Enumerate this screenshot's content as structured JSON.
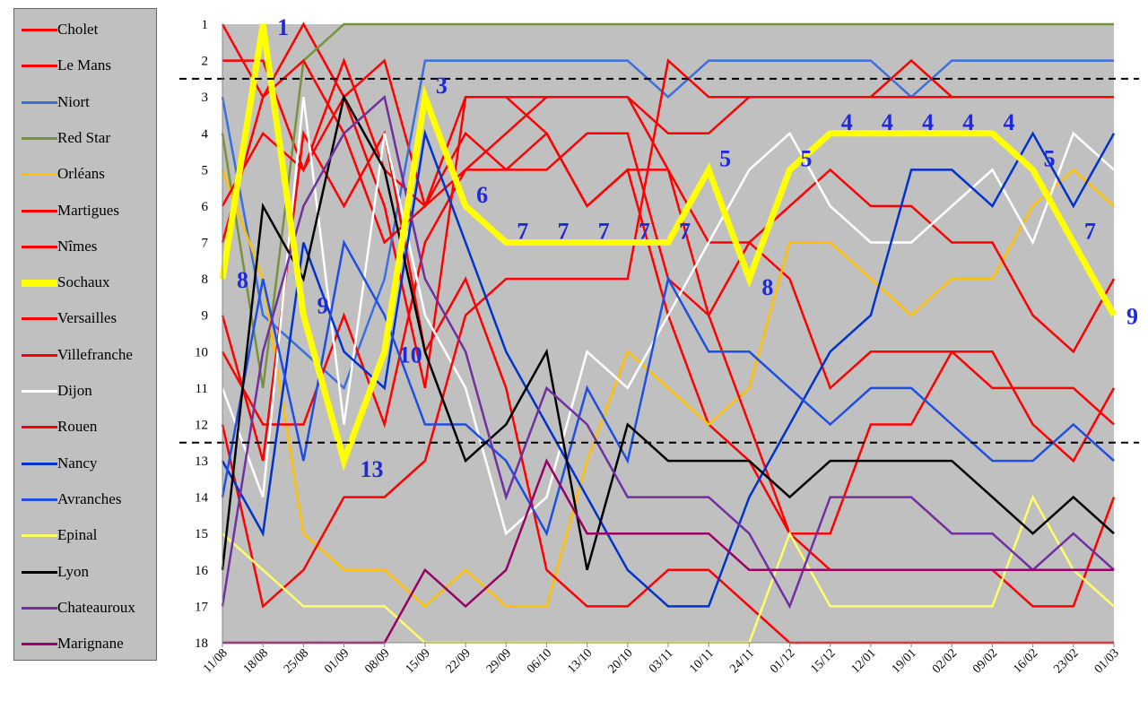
{
  "chart_data": {
    "type": "line",
    "title": "",
    "xlabel": "",
    "ylabel": "",
    "x": [
      "11/08",
      "18/08",
      "25/08",
      "01/09",
      "08/09",
      "15/09",
      "22/09",
      "29/09",
      "06/10",
      "13/10",
      "20/10",
      "03/11",
      "10/11",
      "24/11",
      "01/12",
      "15/12",
      "12/01",
      "19/01",
      "02/02",
      "09/02",
      "16/02",
      "23/02",
      "01/03"
    ],
    "y_ticks": [
      1,
      2,
      3,
      4,
      5,
      6,
      7,
      8,
      9,
      10,
      11,
      12,
      13,
      14,
      15,
      16,
      17,
      18
    ],
    "ylim": [
      18,
      1
    ],
    "y_inverted": true,
    "grid": false,
    "background": "#c0c0c0",
    "legend_position": "left",
    "reference_lines": [
      2.5,
      12.5
    ],
    "series": [
      {
        "name": "Cholet",
        "color": "#ff0000",
        "values": [
          1,
          3,
          1,
          3,
          6,
          11,
          3,
          3,
          4,
          6,
          5,
          9,
          12,
          13,
          15,
          16,
          16,
          16,
          16,
          16,
          17,
          17,
          14
        ]
      },
      {
        "name": "Le Mans",
        "color": "#ff0000",
        "values": [
          2,
          2,
          5,
          3,
          2,
          6,
          5,
          4,
          3,
          3,
          3,
          5,
          9,
          7,
          8,
          11,
          10,
          10,
          10,
          11,
          11,
          11,
          12
        ]
      },
      {
        "name": "Niort",
        "color": "#3a6fdc",
        "values": [
          3,
          9,
          10,
          11,
          8,
          2,
          2,
          2,
          2,
          2,
          2,
          3,
          2,
          2,
          2,
          2,
          2,
          3,
          2,
          2,
          2,
          2,
          2
        ]
      },
      {
        "name": "Red Star",
        "color": "#77933c",
        "values": [
          4,
          11,
          2,
          1,
          1,
          1,
          1,
          1,
          1,
          1,
          1,
          1,
          1,
          1,
          1,
          1,
          1,
          1,
          1,
          1,
          1,
          1,
          1
        ]
      },
      {
        "name": "Orléans",
        "color": "#ffc000",
        "values": [
          5,
          8,
          15,
          16,
          16,
          17,
          16,
          17,
          17,
          13,
          10,
          11,
          12,
          11,
          7,
          7,
          8,
          9,
          8,
          8,
          6,
          5,
          6
        ]
      },
      {
        "name": "Martigues",
        "color": "#ff0000",
        "values": [
          6,
          4,
          5,
          2,
          5,
          6,
          4,
          5,
          5,
          4,
          4,
          8,
          9,
          12,
          15,
          15,
          12,
          12,
          10,
          10,
          12,
          13,
          11
        ]
      },
      {
        "name": "Nîmes",
        "color": "#ff0000",
        "values": [
          7,
          3,
          2,
          4,
          7,
          6,
          3,
          3,
          3,
          3,
          3,
          4,
          4,
          3,
          3,
          3,
          3,
          2,
          3,
          3,
          3,
          3,
          3
        ]
      },
      {
        "name": "Sochaux",
        "color": "#ffff00",
        "values": [
          8,
          1,
          9,
          13,
          10,
          3,
          6,
          7,
          7,
          7,
          7,
          7,
          5,
          8,
          5,
          4,
          4,
          4,
          4,
          4,
          5,
          7,
          9
        ]
      },
      {
        "name": "Versailles",
        "color": "#ff0000",
        "values": [
          9,
          13,
          4,
          6,
          4,
          10,
          8,
          11,
          16,
          17,
          17,
          16,
          16,
          17,
          18,
          18,
          18,
          18,
          18,
          18,
          18,
          18,
          18
        ]
      },
      {
        "name": "Villefranche",
        "color": "#ff0000",
        "values": [
          10,
          12,
          12,
          9,
          12,
          7,
          5,
          5,
          4,
          6,
          5,
          5,
          7,
          7,
          6,
          5,
          6,
          6,
          7,
          7,
          9,
          10,
          8
        ]
      },
      {
        "name": "Dijon",
        "color": "#ffffff",
        "values": [
          11,
          14,
          3,
          12,
          4,
          9,
          11,
          15,
          14,
          10,
          11,
          9,
          7,
          5,
          4,
          6,
          7,
          7,
          6,
          5,
          7,
          4,
          5
        ]
      },
      {
        "name": "Rouen",
        "color": "#ff0000",
        "values": [
          12,
          17,
          16,
          14,
          14,
          13,
          9,
          8,
          8,
          8,
          8,
          2,
          3,
          3,
          3,
          3,
          3,
          3,
          3,
          3,
          3,
          3,
          3
        ]
      },
      {
        "name": "Nancy",
        "color": "#0033cc",
        "values": [
          13,
          15,
          7,
          10,
          11,
          4,
          7,
          10,
          12,
          14,
          16,
          17,
          17,
          14,
          12,
          10,
          9,
          5,
          5,
          6,
          4,
          6,
          4
        ]
      },
      {
        "name": "Avranches",
        "color": "#1f4fe0",
        "values": [
          14,
          8,
          13,
          7,
          9,
          12,
          12,
          13,
          15,
          11,
          13,
          8,
          10,
          10,
          11,
          12,
          11,
          11,
          12,
          13,
          13,
          12,
          13
        ]
      },
      {
        "name": "Epinal",
        "color": "#ffff66",
        "values": [
          15,
          16,
          17,
          17,
          17,
          18,
          18,
          18,
          18,
          18,
          18,
          18,
          18,
          18,
          15,
          17,
          17,
          17,
          17,
          17,
          14,
          16,
          17
        ]
      },
      {
        "name": "Lyon",
        "color": "#000000",
        "values": [
          16,
          6,
          8,
          3,
          5,
          10,
          13,
          12,
          10,
          16,
          12,
          13,
          13,
          13,
          14,
          13,
          13,
          13,
          13,
          14,
          15,
          14,
          15
        ]
      },
      {
        "name": "Chateauroux",
        "color": "#7030a0",
        "values": [
          17,
          10,
          6,
          4,
          3,
          8,
          10,
          14,
          11,
          12,
          14,
          14,
          14,
          15,
          17,
          14,
          14,
          14,
          15,
          15,
          16,
          15,
          16
        ]
      },
      {
        "name": "Marignane",
        "color": "#990066",
        "values": [
          18,
          18,
          18,
          18,
          18,
          16,
          17,
          16,
          13,
          15,
          15,
          15,
          15,
          16,
          16,
          16,
          16,
          16,
          16,
          16,
          16,
          16,
          16
        ]
      }
    ],
    "annotations": [
      {
        "x": "18/08",
        "y": 1,
        "text": "1"
      },
      {
        "x": "15/09",
        "y": 3,
        "text": "3"
      },
      {
        "x": "22/09",
        "y": 6,
        "text": "6"
      },
      {
        "x": "29/09",
        "y": 7,
        "text": "7"
      },
      {
        "x": "06/10",
        "y": 7,
        "text": "7"
      },
      {
        "x": "13/10",
        "y": 7,
        "text": "7"
      },
      {
        "x": "20/10",
        "y": 7,
        "text": "7"
      },
      {
        "x": "03/11",
        "y": 7,
        "text": "7"
      },
      {
        "x": "10/11",
        "y": 5,
        "text": "5"
      },
      {
        "x": "24/11",
        "y": 8,
        "text": "8"
      },
      {
        "x": "01/12",
        "y": 5,
        "text": "5"
      },
      {
        "x": "15/12",
        "y": 4,
        "text": "4"
      },
      {
        "x": "12/01",
        "y": 4,
        "text": "4"
      },
      {
        "x": "19/01",
        "y": 4,
        "text": "4"
      },
      {
        "x": "02/02",
        "y": 4,
        "text": "4"
      },
      {
        "x": "09/02",
        "y": 4,
        "text": "4"
      },
      {
        "x": "16/02",
        "y": 5,
        "text": "5"
      },
      {
        "x": "23/02",
        "y": 7,
        "text": "7"
      },
      {
        "x": "01/03",
        "y": 9,
        "text": "9"
      },
      {
        "x": "11/08",
        "y": 8,
        "text": "8"
      },
      {
        "x": "01/09",
        "y": 9,
        "text": "9"
      },
      {
        "x": "08/09",
        "y": 10,
        "text": "10"
      },
      {
        "x": "01/09",
        "y": 13,
        "text": "13"
      }
    ]
  }
}
